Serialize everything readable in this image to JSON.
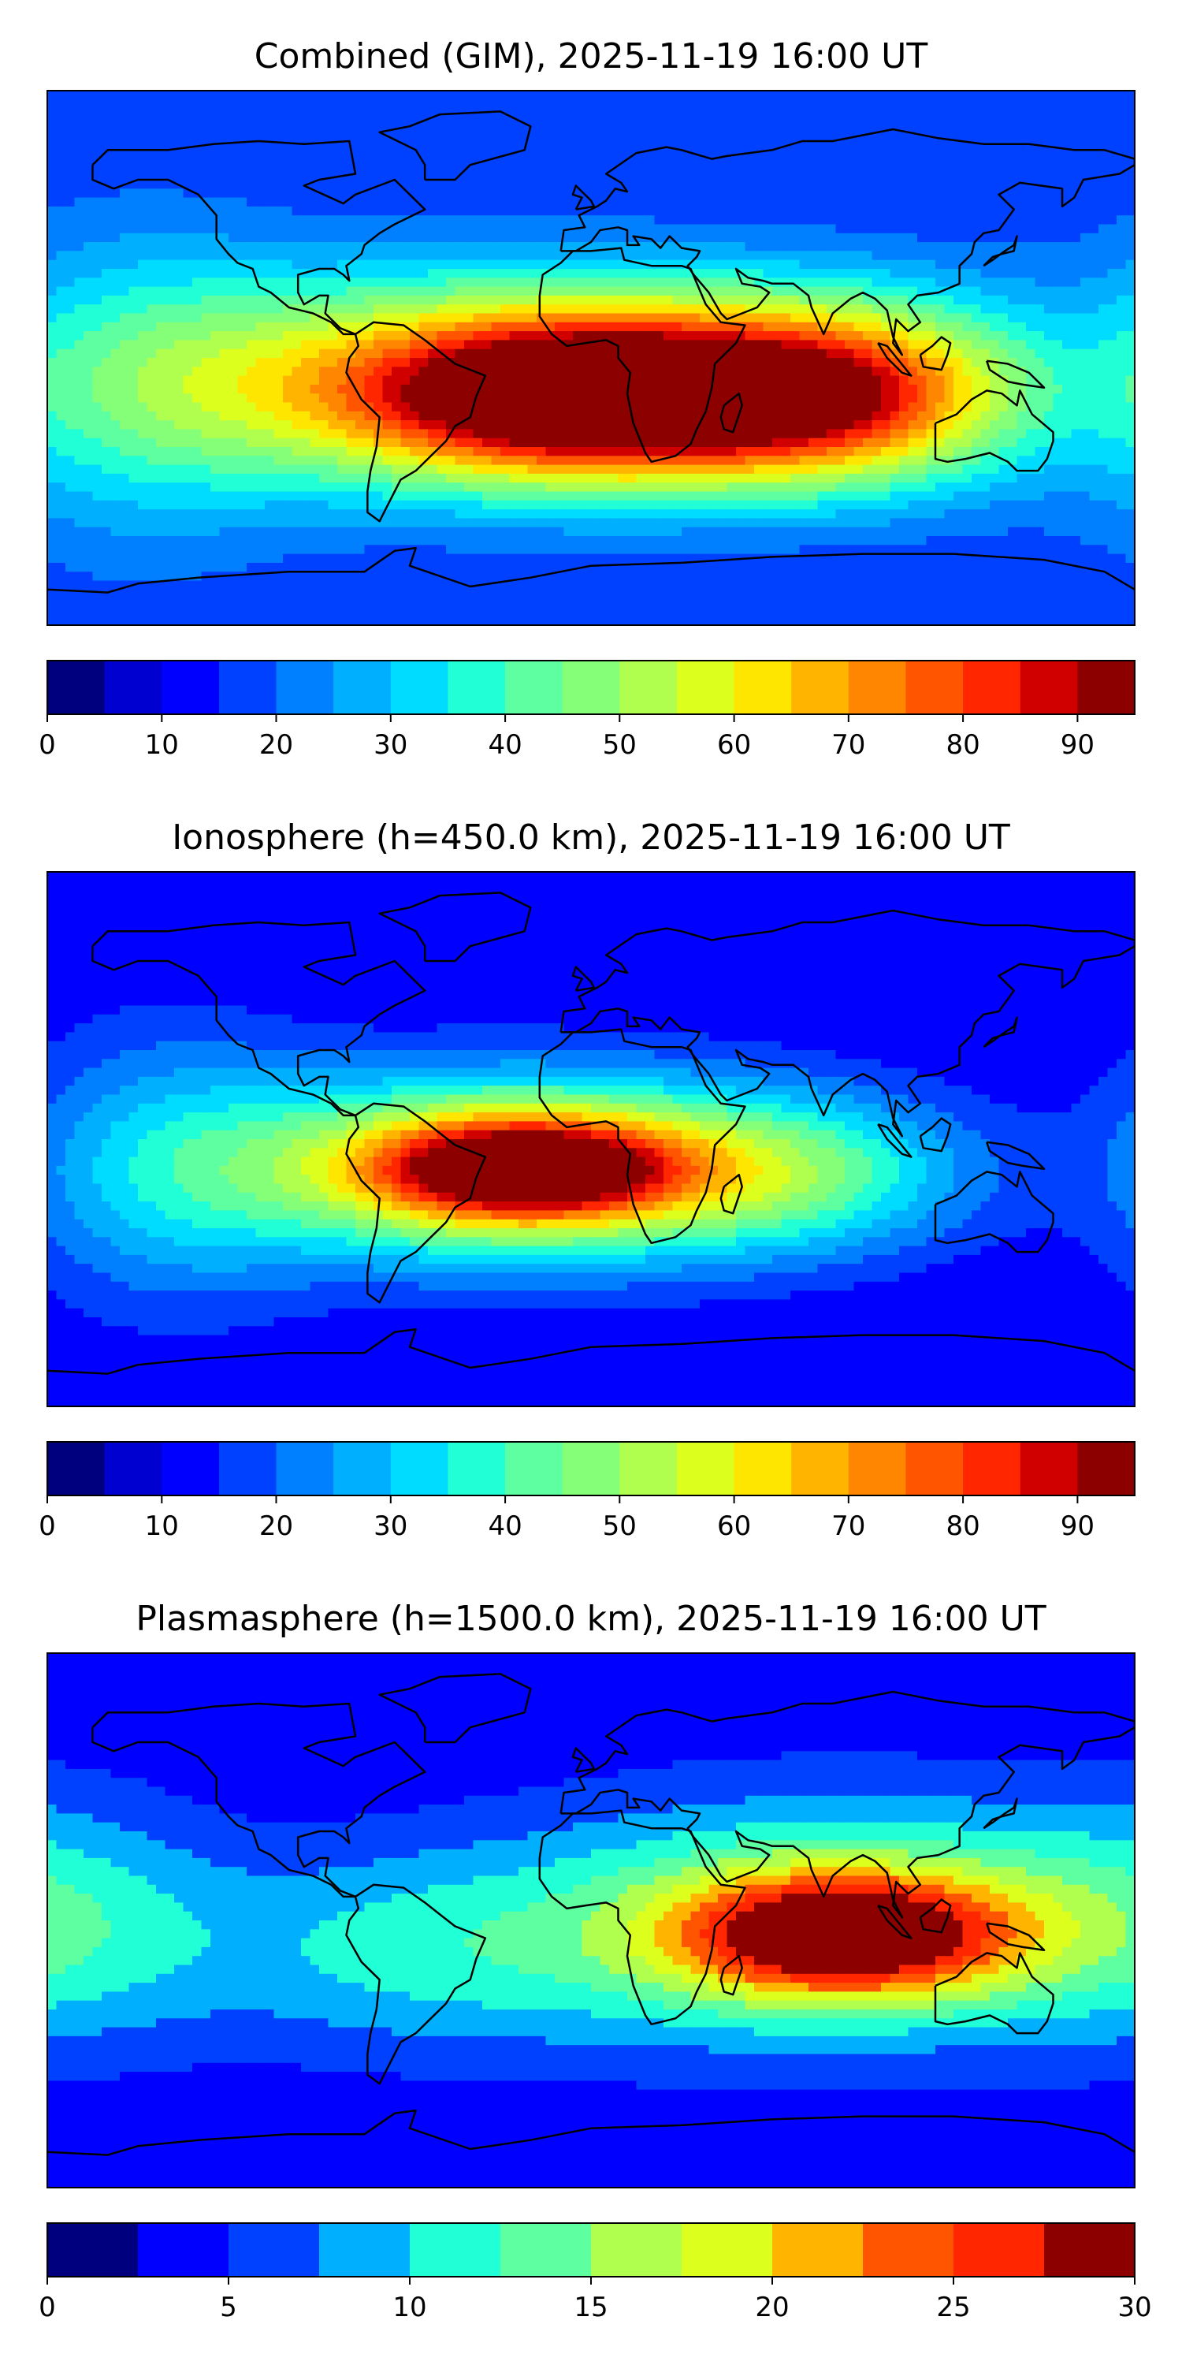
{
  "panels": [
    {
      "title": "Combined (GIM), 2025-11-19 16:00 UT",
      "colorbar": {
        "ticks": [
          "0",
          "10",
          "20",
          "30",
          "40",
          "50",
          "60",
          "70",
          "80",
          "90"
        ],
        "min": 0,
        "max": 95,
        "step": 5
      },
      "field": {
        "background": 15,
        "hotspots": [
          {
            "lon": -20,
            "lat": -8,
            "value": 70,
            "sx": 85,
            "sy": 25
          },
          {
            "lon": 10,
            "lat": -14,
            "value": 76,
            "sx": 55,
            "sy": 18
          },
          {
            "lon": 90,
            "lat": -12,
            "value": 52,
            "sx": 40,
            "sy": 22
          },
          {
            "lon": -150,
            "lat": -10,
            "value": 32,
            "sx": 40,
            "sy": 40
          }
        ]
      }
    },
    {
      "title": "Ionosphere  (h=450.0 km), 2025-11-19 16:00 UT",
      "colorbar": {
        "ticks": [
          "0",
          "10",
          "20",
          "30",
          "40",
          "50",
          "60",
          "70",
          "80",
          "90"
        ],
        "min": 0,
        "max": 95,
        "step": 5
      },
      "field": {
        "background": 10,
        "hotspots": [
          {
            "lon": -25,
            "lat": -10,
            "value": 62,
            "sx": 70,
            "sy": 22
          },
          {
            "lon": -22,
            "lat": -10,
            "value": 68,
            "sx": 35,
            "sy": 12
          },
          {
            "lon": 70,
            "lat": -12,
            "value": 30,
            "sx": 40,
            "sy": 18
          },
          {
            "lon": -140,
            "lat": -10,
            "value": 26,
            "sx": 35,
            "sy": 35
          }
        ]
      }
    },
    {
      "title": "Plasmasphere (h=1500.0 km), 2025-11-19 16:00 UT",
      "colorbar": {
        "ticks": [
          "0",
          "5",
          "10",
          "15",
          "20",
          "25",
          "30"
        ],
        "min": 0,
        "max": 30,
        "step": 2.5
      },
      "field": {
        "background": 3,
        "hotspots": [
          {
            "lon": 85,
            "lat": -5,
            "value": 25,
            "sx": 40,
            "sy": 15
          },
          {
            "lon": 75,
            "lat": 0,
            "value": 14,
            "sx": 70,
            "sy": 30
          },
          {
            "lon": -60,
            "lat": -10,
            "value": 10,
            "sx": 60,
            "sy": 25
          },
          {
            "lon": -180,
            "lat": 0,
            "value": 9,
            "sx": 40,
            "sy": 30
          }
        ]
      }
    }
  ],
  "colormap": [
    "#00007f",
    "#0000d0",
    "#0000ff",
    "#0040ff",
    "#0080ff",
    "#00b0ff",
    "#00dcff",
    "#20ffd6",
    "#5effa0",
    "#86ff78",
    "#b0ff4e",
    "#dcff1e",
    "#ffe600",
    "#ffb400",
    "#ff8600",
    "#ff5400",
    "#ff2600",
    "#d00000",
    "#8c0000"
  ],
  "coastline_color": "#000000"
}
